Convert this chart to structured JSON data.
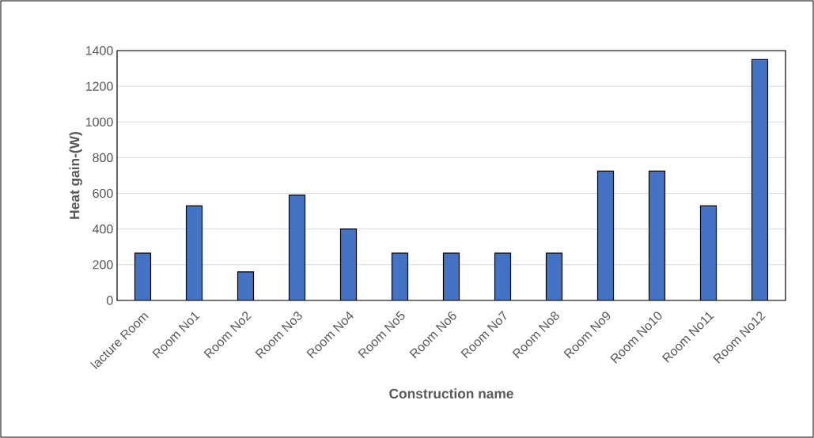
{
  "chart_data": {
    "type": "bar",
    "xlabel": "Construction name",
    "ylabel": "Heat gain-(W)",
    "categories": [
      "lacture Room",
      "Room No1",
      "Room No2",
      "Room No3",
      "Room No4",
      "Room No5",
      "Room No6",
      "Room No7",
      "Room No8",
      "Room No9",
      "Room No10",
      "Room No11",
      "Room No12"
    ],
    "values": [
      265,
      530,
      160,
      590,
      400,
      265,
      265,
      265,
      265,
      725,
      725,
      530,
      1350
    ],
    "color": "#4472c4",
    "ylim": [
      0,
      1400
    ],
    "yticks": [
      0,
      200,
      400,
      600,
      800,
      1000,
      1200,
      1400
    ],
    "grid": "y"
  }
}
